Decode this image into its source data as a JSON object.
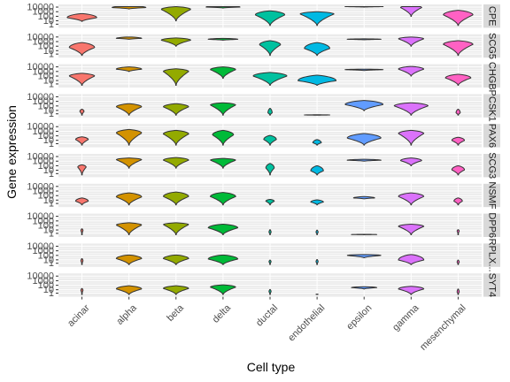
{
  "chart_data": {
    "type": "violin",
    "xlabel": "Cell type",
    "ylabel": "Gene expression",
    "y_scale": "log10(x+1)",
    "y_ticks": [
      "10000",
      "1000",
      "100",
      "10",
      "1"
    ],
    "grid": true,
    "legend": "none",
    "categories": [
      "acinar",
      "alpha",
      "beta",
      "delta",
      "ductal",
      "endothelial",
      "epsilon",
      "gamma",
      "mesenchymal"
    ],
    "colors": [
      "#F8766D",
      "#D39200",
      "#93AA00",
      "#00BA38",
      "#00C19F",
      "#00B9E3",
      "#619CFF",
      "#DB72FB",
      "#FF61C3"
    ],
    "facets": [
      {
        "label": "CPE",
        "shapes": [
          [
            0.9,
            1.7,
            2.6,
            0.7
          ],
          [
            3.6,
            3.9,
            4.3,
            0.8
          ],
          [
            1.0,
            3.5,
            4.1,
            0.7
          ],
          [
            3.8,
            4.0,
            4.4,
            0.8
          ],
          [
            0.0,
            2.3,
            3.2,
            0.7
          ],
          [
            0.0,
            2.5,
            3.0,
            0.8
          ],
          [
            4.0,
            4.1,
            4.2,
            0.9
          ],
          [
            2.0,
            3.9,
            4.4,
            0.5
          ],
          [
            0.0,
            2.3,
            3.3,
            0.7
          ]
        ]
      },
      {
        "label": "SCG5",
        "shapes": [
          [
            0.0,
            1.7,
            2.8,
            0.6
          ],
          [
            3.5,
            3.7,
            4.0,
            0.6
          ],
          [
            2.0,
            3.3,
            3.8,
            0.7
          ],
          [
            3.3,
            3.5,
            3.7,
            0.7
          ],
          [
            0.0,
            2.3,
            3.2,
            0.5
          ],
          [
            0.0,
            1.5,
            2.8,
            0.6
          ],
          [
            3.4,
            3.5,
            3.6,
            0.8
          ],
          [
            2.0,
            3.6,
            4.0,
            0.6
          ],
          [
            0.0,
            2.4,
            3.2,
            0.7
          ]
        ]
      },
      {
        "label": "CHGB",
        "shapes": [
          [
            0.0,
            2.0,
            2.6,
            0.6
          ],
          [
            3.0,
            3.5,
            4.0,
            0.6
          ],
          [
            0.0,
            3.0,
            3.6,
            0.6
          ],
          [
            1.5,
            3.4,
            4.0,
            0.6
          ],
          [
            0.0,
            2.0,
            2.8,
            0.8
          ],
          [
            0.0,
            1.0,
            2.2,
            0.9
          ],
          [
            3.2,
            3.4,
            3.5,
            0.9
          ],
          [
            2.0,
            3.5,
            4.1,
            0.6
          ],
          [
            0.0,
            1.6,
            2.4,
            0.6
          ]
        ]
      },
      {
        "label": "PCSK1",
        "shapes": [
          [
            0.0,
            0.8,
            1.3,
            0.1
          ],
          [
            0.0,
            1.8,
            2.5,
            0.6
          ],
          [
            0.0,
            1.8,
            2.5,
            0.6
          ],
          [
            0.0,
            2.2,
            2.7,
            0.6
          ],
          [
            0.0,
            0.5,
            1.5,
            0.1
          ],
          [
            0.0,
            0.05,
            0.1,
            0.6
          ],
          [
            1.0,
            2.3,
            3.2,
            0.9
          ],
          [
            0.0,
            2.0,
            2.7,
            0.8
          ],
          [
            0.0,
            0.5,
            1.3,
            0.1
          ]
        ]
      },
      {
        "label": "PAX6",
        "shapes": [
          [
            0.0,
            1.2,
            1.8,
            0.3
          ],
          [
            0.0,
            2.6,
            3.4,
            0.6
          ],
          [
            0.0,
            2.4,
            3.2,
            0.6
          ],
          [
            0.0,
            2.2,
            3.2,
            0.5
          ],
          [
            0.0,
            1.2,
            2.1,
            0.3
          ],
          [
            0.0,
            0.5,
            1.2,
            0.2
          ],
          [
            0.0,
            1.5,
            2.5,
            0.8
          ],
          [
            0.0,
            2.5,
            3.2,
            0.6
          ],
          [
            0.0,
            1.0,
            1.7,
            0.3
          ]
        ]
      },
      {
        "label": "SCG3",
        "shapes": [
          [
            0.0,
            1.7,
            2.2,
            0.2
          ],
          [
            1.5,
            3.3,
            3.7,
            0.6
          ],
          [
            1.5,
            3.2,
            3.8,
            0.6
          ],
          [
            1.5,
            3.2,
            3.6,
            0.6
          ],
          [
            0.0,
            1.5,
            2.5,
            0.2
          ],
          [
            0.0,
            0.9,
            2.0,
            0.3
          ],
          [
            3.0,
            3.2,
            3.4,
            0.8
          ],
          [
            2.0,
            3.1,
            3.7,
            0.5
          ],
          [
            0.0,
            1.1,
            2.0,
            0.3
          ]
        ]
      },
      {
        "label": "NSMF",
        "shapes": [
          [
            0.0,
            0.8,
            1.5,
            0.3
          ],
          [
            0.0,
            1.7,
            2.6,
            0.6
          ],
          [
            0.0,
            1.8,
            2.8,
            0.6
          ],
          [
            0.0,
            1.8,
            2.7,
            0.6
          ],
          [
            0.0,
            0.8,
            1.2,
            0.2
          ],
          [
            0.0,
            0.6,
            1.1,
            0.3
          ],
          [
            1.3,
            1.5,
            1.8,
            0.5
          ],
          [
            0.0,
            1.8,
            2.6,
            0.6
          ],
          [
            0.0,
            0.8,
            1.5,
            0.2
          ]
        ]
      },
      {
        "label": "DPP6",
        "shapes": [
          [
            0.0,
            0.9,
            1.3,
            0.05
          ],
          [
            0.0,
            2.1,
            2.6,
            0.6
          ],
          [
            0.0,
            2.2,
            2.6,
            0.6
          ],
          [
            0.0,
            1.5,
            2.3,
            0.7
          ],
          [
            0.0,
            0.5,
            1.1,
            0.05
          ],
          [
            0.0,
            0.5,
            1.0,
            0.05
          ],
          [
            0.0,
            0.05,
            0.1,
            0.6
          ],
          [
            0.0,
            1.8,
            2.3,
            0.6
          ],
          [
            0.0,
            0.8,
            1.1,
            0.05
          ]
        ]
      },
      {
        "label": "RPLX...",
        "shapes": [
          [
            0.0,
            0.8,
            1.3,
            0.05
          ],
          [
            0.0,
            1.3,
            2.1,
            0.6
          ],
          [
            0.0,
            1.3,
            2.1,
            0.6
          ],
          [
            0.0,
            1.2,
            2.1,
            0.7
          ],
          [
            0.0,
            0.6,
            1.0,
            0.05
          ],
          [
            0.0,
            0.6,
            1.1,
            0.05
          ],
          [
            1.5,
            2.0,
            2.2,
            0.8
          ],
          [
            0.0,
            1.0,
            2.2,
            0.6
          ],
          [
            0.0,
            0.5,
            1.0,
            0.05
          ]
        ]
      },
      {
        "label": "SYT4",
        "shapes": [
          [
            0.0,
            0.9,
            1.3,
            0.05
          ],
          [
            0.0,
            1.2,
            1.9,
            0.6
          ],
          [
            0.0,
            1.3,
            1.9,
            0.6
          ],
          [
            0.0,
            1.6,
            2.1,
            0.6
          ],
          [
            0.0,
            0.6,
            1.1,
            0.05
          ],
          [
            0.0,
            0.05,
            0.1,
            0.05
          ],
          [
            1.2,
            1.5,
            1.7,
            0.6
          ],
          [
            0.0,
            1.2,
            1.8,
            0.6
          ],
          [
            0.0,
            0.5,
            1.2,
            0.05
          ]
        ]
      }
    ]
  }
}
